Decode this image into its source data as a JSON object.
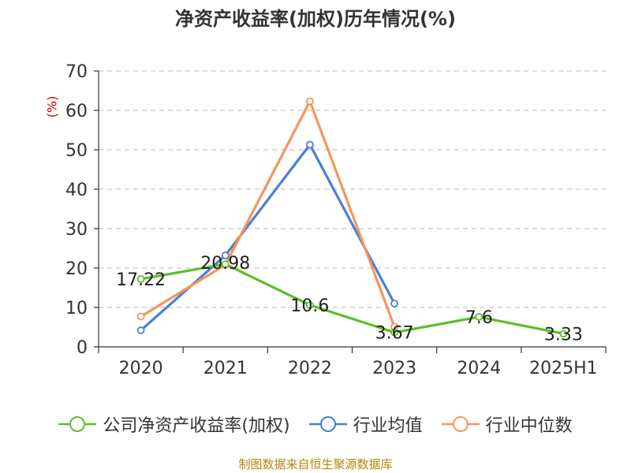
{
  "page": {
    "title": "净资产收益率(加权)历年情况(%)",
    "footer": "制图数据来自恒生聚源数据库"
  },
  "chart_data": {
    "type": "line",
    "title": "净资产收益率(加权)历年情况(%)",
    "xlabel": "",
    "ylabel": "(%)",
    "categories": [
      "2020",
      "2021",
      "2022",
      "2023",
      "2024",
      "2025H1"
    ],
    "ylim": [
      0,
      70
    ],
    "yticks": [
      0,
      10,
      20,
      30,
      40,
      50,
      60,
      70
    ],
    "grid": true,
    "legend_position": "bottom",
    "series": [
      {
        "name": "公司净资产收益率(加权)",
        "color": "#5cbf2a",
        "values": [
          17.22,
          20.98,
          10.6,
          3.67,
          7.6,
          3.33
        ],
        "labels": [
          "17.22",
          "20.98",
          "10.6",
          "3.67",
          "7.6",
          "3.33"
        ]
      },
      {
        "name": "行业均值",
        "color": "#4a7fd6",
        "values": [
          4.2,
          23.2,
          51.3,
          11.0,
          null,
          null
        ]
      },
      {
        "name": "行业中位数",
        "color": "#f5955a",
        "values": [
          7.7,
          20.8,
          62.3,
          5.1,
          null,
          null
        ]
      }
    ]
  }
}
